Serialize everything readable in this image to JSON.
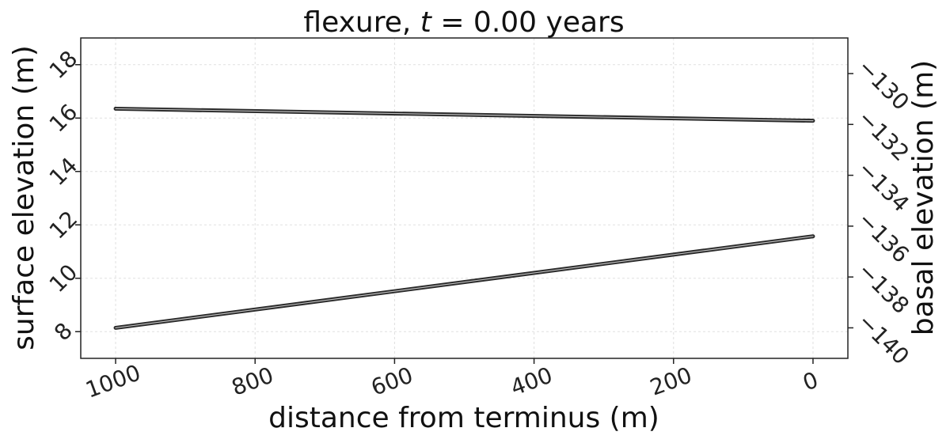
{
  "chart_data": {
    "type": "line",
    "title": {
      "prefix": "flexure, ",
      "variable": "t",
      "suffix": " = 0.00 years"
    },
    "xlabel": "distance from terminus (m)",
    "ylabel_left": "surface elevation (m)",
    "ylabel_right": "basal elevation (m)",
    "xlim": [
      1050,
      -50
    ],
    "ylim_left": [
      7,
      19
    ],
    "ylim_right": [
      -141.2,
      -128.6
    ],
    "x_ticks": [
      1000,
      800,
      600,
      400,
      200,
      0
    ],
    "x_tick_labels": [
      "1000",
      "800",
      "600",
      "400",
      "200",
      "0"
    ],
    "y_left_ticks": [
      8,
      10,
      12,
      14,
      16,
      18
    ],
    "y_left_tick_labels": [
      "8",
      "10",
      "12",
      "14",
      "16",
      "18"
    ],
    "y_right_ticks": [
      -130,
      -132,
      -134,
      -136,
      -138,
      -140
    ],
    "y_right_tick_labels": [
      "−130",
      "−132",
      "−134",
      "−136",
      "−138",
      "−140"
    ],
    "grid": true,
    "series": [
      {
        "axis": "left",
        "x": [
          1000,
          0
        ],
        "y": [
          16.35,
          15.9
        ]
      },
      {
        "axis": "right",
        "x": [
          1000,
          0
        ],
        "y": [
          -140.0,
          -136.4
        ]
      }
    ]
  }
}
